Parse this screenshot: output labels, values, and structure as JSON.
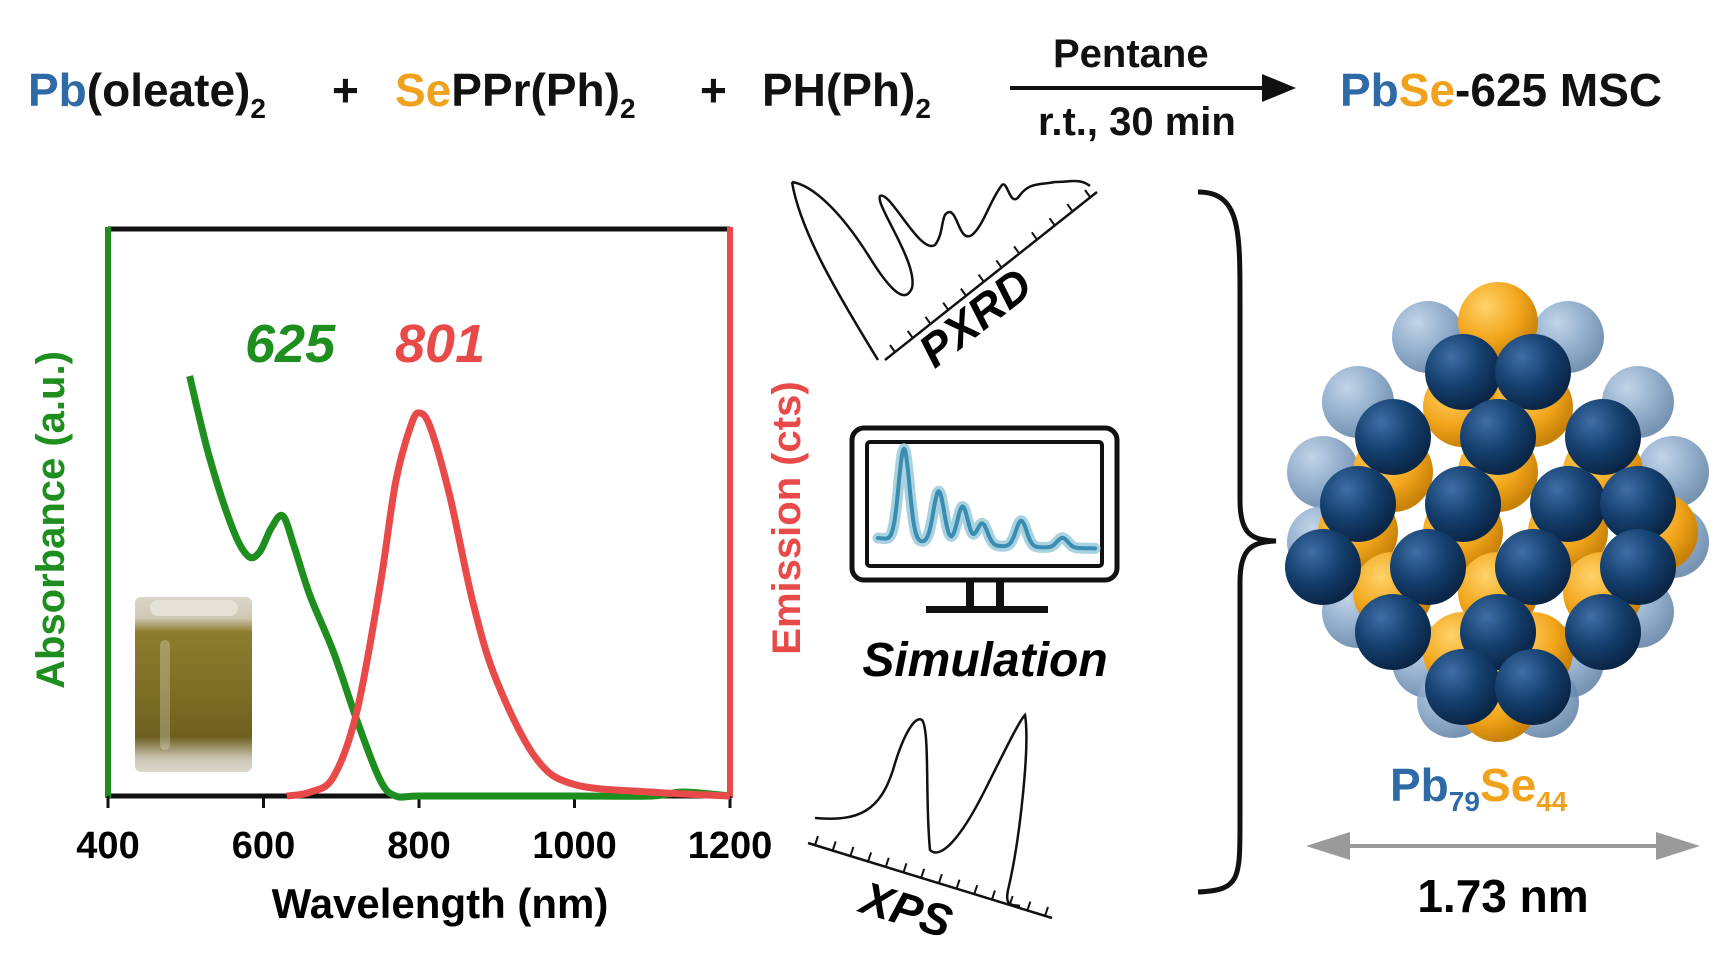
{
  "equation": {
    "reactant1": {
      "el": "Pb",
      "rest": "(oleate)",
      "sub": "2"
    },
    "plus1": "+",
    "reactant2": {
      "el": "Se",
      "rest": "PPr(Ph)",
      "sub": "2"
    },
    "plus2": "+",
    "reactant3": {
      "rest": "PH(Ph)",
      "sub": "2"
    },
    "condition_top": "Pentane",
    "condition_bottom": "r.t., 30 min",
    "product": {
      "el1": "Pb",
      "el2": "Se",
      "rest": "-625 MSC"
    }
  },
  "chart_data": {
    "type": "line",
    "xlabel": "Wavelength (nm)",
    "ylabel_left": "Absorbance (a.u.)",
    "ylabel_right": "Emission (cts)",
    "xlim": [
      400,
      1200
    ],
    "xticks": [
      "400",
      "600",
      "800",
      "1000",
      "1200"
    ],
    "series": [
      {
        "axis": "left",
        "color": "#1e8f1e",
        "x": [
          505,
          530,
          560,
          580,
          595,
          610,
          625,
          640,
          660,
          690,
          720,
          750,
          770,
          800,
          900,
          1000,
          1100,
          1140,
          1200
        ],
        "y": [
          1.05,
          0.85,
          0.67,
          0.6,
          0.61,
          0.67,
          0.7,
          0.62,
          0.5,
          0.36,
          0.19,
          0.04,
          0.0,
          0.0,
          0.0,
          0.0,
          0.0,
          0.01,
          0.0
        ]
      },
      {
        "axis": "right",
        "color": "#e84a4a",
        "x": [
          630,
          660,
          690,
          720,
          750,
          770,
          790,
          801,
          815,
          840,
          870,
          900,
          950,
          1000,
          1100,
          1200
        ],
        "y": [
          0.0,
          0.01,
          0.05,
          0.22,
          0.55,
          0.82,
          0.97,
          1.0,
          0.96,
          0.78,
          0.5,
          0.3,
          0.1,
          0.03,
          0.01,
          0.0
        ]
      }
    ],
    "annotations": [
      {
        "text": "625",
        "color": "#1e8f1e"
      },
      {
        "text": "801",
        "color": "#e84a4a"
      }
    ]
  },
  "methods": {
    "pxrd_label": "PXRD",
    "simulation_label": "Simulation",
    "xps_label": "XPS"
  },
  "cluster": {
    "formula": {
      "el1": "Pb",
      "sub1": "79",
      "el2": "Se",
      "sub2": "44"
    },
    "size_label": "1.73 nm"
  },
  "colors": {
    "pb": "#2e6aa5",
    "se": "#f0a21c",
    "absorbance": "#1e8f1e",
    "emission": "#e84a4a",
    "pb_sphere": "#123d6b",
    "se_sphere": "#f2a61c"
  }
}
